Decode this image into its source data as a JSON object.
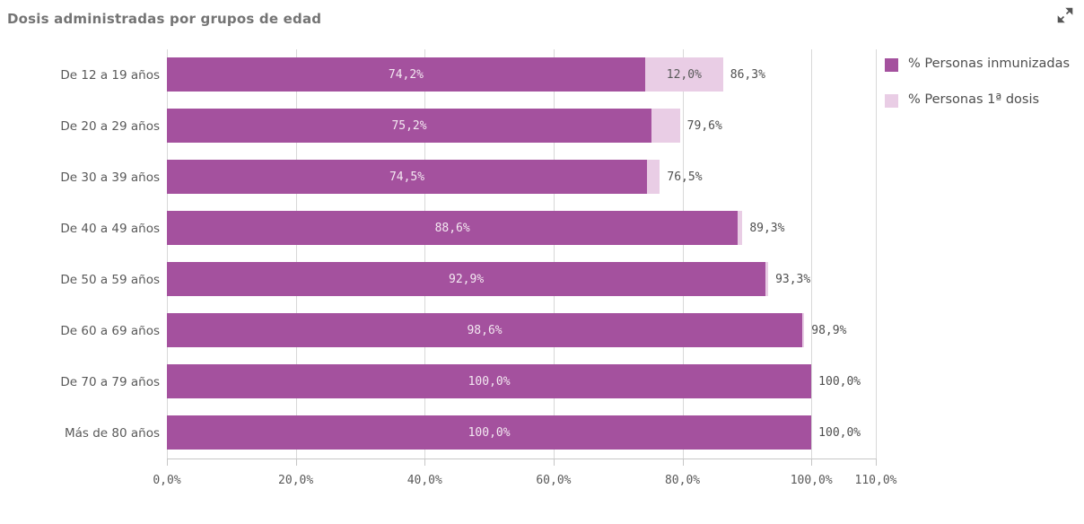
{
  "header": {
    "title": "Dosis administradas por grupos de edad",
    "expand_icon": "diagonal-expand-arrows"
  },
  "colors": {
    "immunized": "#a4519e",
    "first_dose": "#e9cde5",
    "title_text": "#747474",
    "axis_text": "#595959",
    "total_text": "#4f4f4f",
    "gridline": "#d8d8d8"
  },
  "legend": [
    {
      "label": "% Personas inmunizadas",
      "series": "immunized"
    },
    {
      "label": "% Personas 1ª dosis",
      "series": "first_dose"
    }
  ],
  "x_axis": {
    "tick_labels": [
      "0,0%",
      "20,0%",
      "40,0%",
      "60,0%",
      "80,0%",
      "100,0%",
      "110,0%"
    ],
    "tick_values": [
      0,
      20,
      40,
      60,
      80,
      100,
      110
    ],
    "max": 110
  },
  "chart_data": {
    "type": "bar",
    "orientation": "horizontal",
    "stacked": true,
    "title": "Dosis administradas por grupos de edad",
    "categories": [
      "De 12 a 19 años",
      "De 20 a 29 años",
      "De 30 a 39 años",
      "De 40 a 49 años",
      "De 50 a 59 años",
      "De 60 a 69 años",
      "De 70 a 79 años",
      "Más de 80 años"
    ],
    "series": [
      {
        "name": "% Personas inmunizadas",
        "color": "#a4519e",
        "values": [
          74.2,
          75.2,
          74.5,
          88.6,
          92.9,
          98.6,
          100.0,
          100.0
        ],
        "labels": [
          "74,2%",
          "75,2%",
          "74,5%",
          "88,6%",
          "92,9%",
          "98,6%",
          "100,0%",
          "100,0%"
        ]
      },
      {
        "name": "% Personas 1ª dosis",
        "color": "#e9cde5",
        "values": [
          12.0,
          4.4,
          2.0,
          0.7,
          0.4,
          0.3,
          0.0,
          0.0
        ],
        "labels": [
          "12,0%",
          "",
          "",
          "",
          "",
          "",
          "",
          ""
        ]
      }
    ],
    "totals": {
      "values": [
        86.3,
        79.6,
        76.5,
        89.3,
        93.3,
        98.9,
        100.0,
        100.0
      ],
      "labels": [
        "86,3%",
        "79,6%",
        "76,5%",
        "89,3%",
        "93,3%",
        "98,9%",
        "100,0%",
        "100,0%"
      ]
    },
    "xlim": [
      0,
      110
    ],
    "grid": true,
    "legend_position": "right"
  }
}
